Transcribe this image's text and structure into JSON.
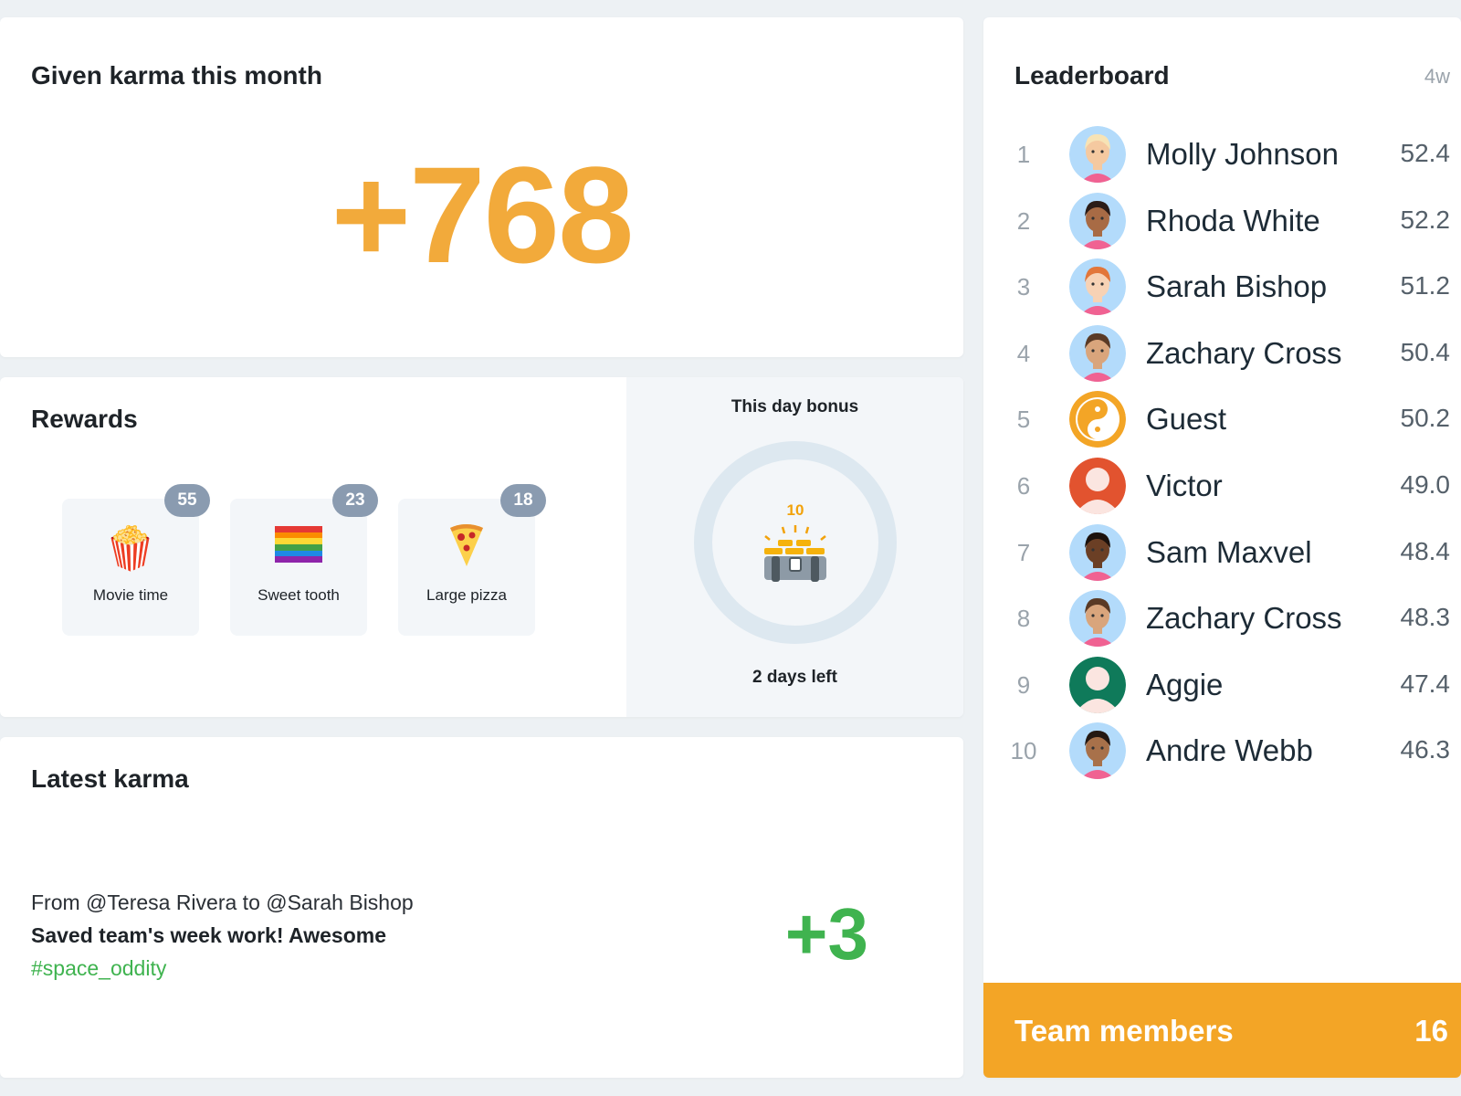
{
  "karma": {
    "title": "Given karma this month",
    "value": "+768",
    "color": "#f2aa3b"
  },
  "rewards": {
    "title": "Rewards",
    "items": [
      {
        "label": "Movie time",
        "count": "55",
        "icon": "popcorn-icon",
        "emoji": "🍿"
      },
      {
        "label": "Sweet tooth",
        "count": "23",
        "icon": "rainbow-flag-icon",
        "emoji": "🏳️‍🌈"
      },
      {
        "label": "Large pizza",
        "count": "18",
        "icon": "pizza-icon",
        "emoji": "🍕"
      }
    ]
  },
  "bonus": {
    "title": "This day bonus",
    "amount": "10",
    "icon": "treasure-chest-icon",
    "time_left": "2 days left"
  },
  "latest": {
    "title": "Latest karma",
    "from": "From @Teresa Rivera to @Sarah Bishop",
    "message": "Saved team's week work! Awesome",
    "tag": "#space_oddity",
    "points": "+3",
    "color": "#3fb34f"
  },
  "leaderboard": {
    "title": "Leaderboard",
    "period": "4w",
    "rows": [
      {
        "rank": "1",
        "name": "Molly Johnson",
        "score": "52.4",
        "bg": "#b3dbfb",
        "skin": "#f5c9a0",
        "hair": "#f7e3b5"
      },
      {
        "rank": "2",
        "name": "Rhoda White",
        "score": "52.2",
        "bg": "#b3dbfb",
        "skin": "#a86b45",
        "hair": "#2b1c17"
      },
      {
        "rank": "3",
        "name": "Sarah Bishop",
        "score": "51.2",
        "bg": "#b3dbfb",
        "skin": "#f7d2b5",
        "hair": "#e2763a"
      },
      {
        "rank": "4",
        "name": "Zachary Cross",
        "score": "50.4",
        "bg": "#b3dbfb",
        "skin": "#d9a57c",
        "hair": "#5a3a25"
      },
      {
        "rank": "5",
        "name": "Guest",
        "score": "50.2",
        "bg": "#f3a526",
        "guest": true
      },
      {
        "rank": "6",
        "name": "Victor",
        "score": "49.0",
        "bg": "#e2532f",
        "placeholder": true
      },
      {
        "rank": "7",
        "name": "Sam Maxvel",
        "score": "48.4",
        "bg": "#b3dbfb",
        "skin": "#6b3f25",
        "hair": "#1c120d"
      },
      {
        "rank": "8",
        "name": "Zachary Cross",
        "score": "48.3",
        "bg": "#b3dbfb",
        "skin": "#d9a57c",
        "hair": "#5a3a25"
      },
      {
        "rank": "9",
        "name": "Aggie",
        "score": "47.4",
        "bg": "#0f7a5a",
        "placeholder": true
      },
      {
        "rank": "10",
        "name": "Andre Webb",
        "score": "46.3",
        "bg": "#b3dbfb",
        "skin": "#a8714a",
        "hair": "#241812"
      }
    ]
  },
  "team": {
    "label": "Team members",
    "count": "16",
    "color": "#f3a526"
  }
}
